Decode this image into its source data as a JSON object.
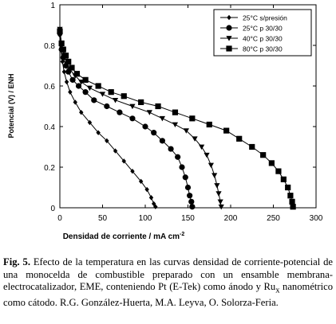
{
  "chart_data": {
    "type": "line",
    "xlabel": "Densidad de corriente / mA cm",
    "xlabel_sup": "-2",
    "ylabel": "Potencial (V) / ENH",
    "xlim": [
      0,
      300
    ],
    "ylim": [
      0,
      1
    ],
    "x_ticks": [
      "0",
      "50",
      "100",
      "150",
      "200",
      "250",
      "300"
    ],
    "y_ticks": [
      "0",
      "0.2",
      "0.4",
      "0.6",
      "0.8",
      "1"
    ],
    "legend_position": "top-right",
    "series": [
      {
        "name": "25°C s/presión",
        "marker": "diamond",
        "points": [
          [
            0,
            0.85
          ],
          [
            1,
            0.78
          ],
          [
            3,
            0.72
          ],
          [
            5,
            0.67
          ],
          [
            8,
            0.62
          ],
          [
            12,
            0.57
          ],
          [
            18,
            0.52
          ],
          [
            25,
            0.47
          ],
          [
            35,
            0.42
          ],
          [
            45,
            0.37
          ],
          [
            55,
            0.33
          ],
          [
            65,
            0.28
          ],
          [
            75,
            0.23
          ],
          [
            85,
            0.18
          ],
          [
            95,
            0.13
          ],
          [
            102,
            0.09
          ],
          [
            107,
            0.05
          ],
          [
            110,
            0.02
          ],
          [
            112,
            0.005
          ]
        ]
      },
      {
        "name": "25°C p 30/30",
        "marker": "circle",
        "points": [
          [
            0,
            0.86
          ],
          [
            2,
            0.78
          ],
          [
            4,
            0.74
          ],
          [
            7,
            0.7
          ],
          [
            10,
            0.67
          ],
          [
            15,
            0.63
          ],
          [
            22,
            0.6
          ],
          [
            30,
            0.57
          ],
          [
            40,
            0.53
          ],
          [
            55,
            0.5
          ],
          [
            70,
            0.47
          ],
          [
            85,
            0.44
          ],
          [
            100,
            0.4
          ],
          [
            110,
            0.37
          ],
          [
            120,
            0.33
          ],
          [
            130,
            0.29
          ],
          [
            138,
            0.25
          ],
          [
            143,
            0.2
          ],
          [
            147,
            0.15
          ],
          [
            150,
            0.1
          ],
          [
            152,
            0.06
          ],
          [
            154,
            0.03
          ],
          [
            155,
            0.005
          ]
        ]
      },
      {
        "name": "40°C p 30/30",
        "marker": "triangle",
        "points": [
          [
            0,
            0.88
          ],
          [
            2,
            0.8
          ],
          [
            5,
            0.75
          ],
          [
            8,
            0.71
          ],
          [
            12,
            0.68
          ],
          [
            18,
            0.65
          ],
          [
            25,
            0.62
          ],
          [
            35,
            0.59
          ],
          [
            50,
            0.56
          ],
          [
            65,
            0.53
          ],
          [
            85,
            0.5
          ],
          [
            105,
            0.47
          ],
          [
            120,
            0.44
          ],
          [
            135,
            0.41
          ],
          [
            148,
            0.38
          ],
          [
            158,
            0.34
          ],
          [
            166,
            0.3
          ],
          [
            172,
            0.26
          ],
          [
            177,
            0.21
          ],
          [
            181,
            0.16
          ],
          [
            184,
            0.11
          ],
          [
            186,
            0.07
          ],
          [
            188,
            0.03
          ],
          [
            189,
            0.005
          ]
        ]
      },
      {
        "name": "80°C p 30/30",
        "marker": "square",
        "points": [
          [
            0,
            0.87
          ],
          [
            2,
            0.81
          ],
          [
            4,
            0.78
          ],
          [
            7,
            0.75
          ],
          [
            10,
            0.72
          ],
          [
            14,
            0.69
          ],
          [
            20,
            0.66
          ],
          [
            30,
            0.63
          ],
          [
            45,
            0.6
          ],
          [
            60,
            0.57
          ],
          [
            75,
            0.55
          ],
          [
            95,
            0.52
          ],
          [
            115,
            0.5
          ],
          [
            135,
            0.47
          ],
          [
            155,
            0.44
          ],
          [
            175,
            0.41
          ],
          [
            195,
            0.38
          ],
          [
            210,
            0.34
          ],
          [
            225,
            0.3
          ],
          [
            238,
            0.26
          ],
          [
            248,
            0.22
          ],
          [
            256,
            0.18
          ],
          [
            262,
            0.14
          ],
          [
            267,
            0.1
          ],
          [
            270,
            0.06
          ],
          [
            272,
            0.03
          ],
          [
            273,
            0.005
          ]
        ]
      }
    ]
  },
  "caption": {
    "label": "Fig. 5.",
    "text_before_sub": " Efecto de la temperatura en las curvas densidad de corriente-potencial de una monocelda de combustible preparado con un ensamble membrana-electrocatalizador, EME, conteniendo Pt (E-Tek) como ánodo y Ru",
    "sub": "x",
    "text_after_sub": " nanométrico como cátodo. R.G. González-Huerta, M.A. Leyva, O. Solorza-Feria."
  }
}
